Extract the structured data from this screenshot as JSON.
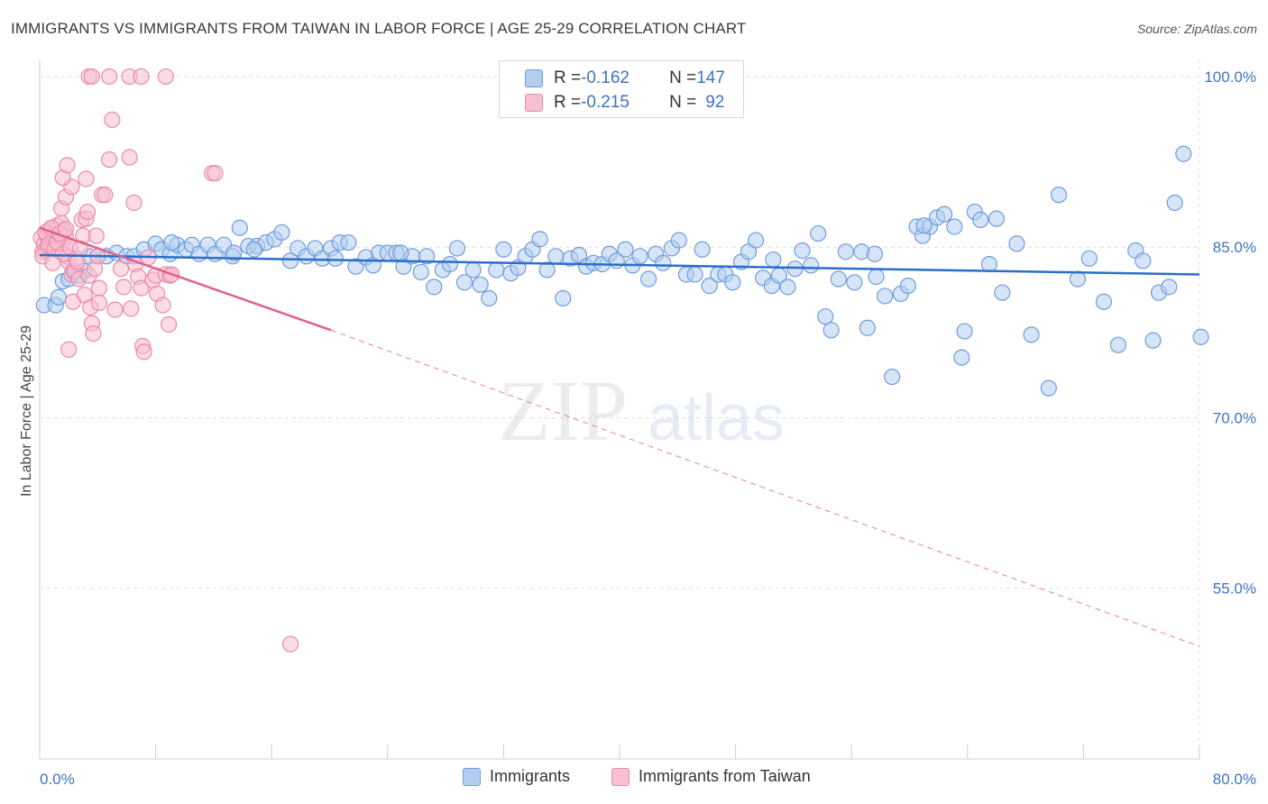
{
  "header": {
    "title": "IMMIGRANTS VS IMMIGRANTS FROM TAIWAN IN LABOR FORCE | AGE 25-29 CORRELATION CHART",
    "source": "Source: ZipAtlas.com"
  },
  "legend": {
    "series1": {
      "r_label": "R = ",
      "r_value": "-0.162",
      "n_label": "N = ",
      "n_value": "147"
    },
    "series2": {
      "r_label": "R = ",
      "r_value": "-0.215",
      "n_label": "N = ",
      "n_value": "92"
    }
  },
  "bottom_legend": {
    "series1": "Immigrants",
    "series2": "Immigrants from Taiwan"
  },
  "watermark": {
    "zip": "ZIP",
    "atlas": "atlas"
  },
  "colors": {
    "blue_fill": "#b3cdf1",
    "blue_stroke": "#6f9ddb",
    "blue_line": "#2a6fcb",
    "pink_fill": "#f7bfd2",
    "pink_stroke": "#e98aaa",
    "pink_line": "#e0608c",
    "tick_text": "#3c74c4",
    "grid": "#dedede"
  },
  "chart_data": {
    "type": "scatter",
    "title": "IMMIGRANTS VS IMMIGRANTS FROM TAIWAN IN LABOR FORCE | AGE 25-29 CORRELATION CHART",
    "ylabel": "In Labor Force | Age 25-29",
    "xlim": [
      0,
      80
    ],
    "ylim": [
      40,
      101.5
    ],
    "x_ticks": [
      "0.0%",
      "80.0%"
    ],
    "y_ticks": [
      {
        "value": 100,
        "label": "100.0%"
      },
      {
        "value": 85,
        "label": "85.0%"
      },
      {
        "value": 70,
        "label": "70.0%"
      },
      {
        "value": 55,
        "label": "55.0%"
      }
    ],
    "grid": true,
    "legend_position": "top-center",
    "series": [
      {
        "name": "Immigrants",
        "r": -0.162,
        "n": 147,
        "trend": {
          "x": [
            0,
            80
          ],
          "y": [
            84.3,
            82.6
          ],
          "style": "solid"
        },
        "points": [
          [
            0.3,
            79.9
          ],
          [
            1.1,
            79.9
          ],
          [
            1.3,
            80.6
          ],
          [
            1.6,
            82.0
          ],
          [
            2.0,
            82.2
          ],
          [
            2.3,
            82.9
          ],
          [
            2.7,
            82.5
          ],
          [
            3.1,
            82.9
          ],
          [
            3.4,
            84.2
          ],
          [
            4.0,
            84.2
          ],
          [
            4.6,
            84.2
          ],
          [
            5.3,
            84.5
          ],
          [
            6.0,
            84.2
          ],
          [
            6.5,
            84.2
          ],
          [
            7.2,
            84.8
          ],
          [
            8.0,
            85.3
          ],
          [
            8.4,
            84.8
          ],
          [
            9.0,
            84.4
          ],
          [
            9.5,
            85.2
          ],
          [
            10.1,
            84.8
          ],
          [
            10.5,
            85.2
          ],
          [
            11.0,
            84.4
          ],
          [
            11.6,
            85.2
          ],
          [
            12.1,
            84.4
          ],
          [
            12.7,
            85.2
          ],
          [
            13.3,
            84.2
          ],
          [
            13.8,
            86.7
          ],
          [
            14.4,
            85.1
          ],
          [
            15.0,
            85.1
          ],
          [
            15.6,
            85.4
          ],
          [
            16.2,
            85.7
          ],
          [
            16.7,
            86.3
          ],
          [
            17.3,
            83.8
          ],
          [
            17.8,
            84.9
          ],
          [
            18.4,
            84.2
          ],
          [
            19.0,
            84.9
          ],
          [
            19.5,
            84.0
          ],
          [
            20.1,
            84.9
          ],
          [
            20.7,
            85.4
          ],
          [
            21.3,
            85.4
          ],
          [
            21.8,
            83.3
          ],
          [
            22.5,
            84.1
          ],
          [
            23.0,
            83.4
          ],
          [
            23.4,
            84.5
          ],
          [
            24.0,
            84.5
          ],
          [
            24.6,
            84.5
          ],
          [
            25.1,
            83.3
          ],
          [
            25.7,
            84.2
          ],
          [
            26.3,
            82.8
          ],
          [
            26.7,
            84.2
          ],
          [
            27.2,
            81.5
          ],
          [
            27.8,
            83.0
          ],
          [
            28.3,
            83.5
          ],
          [
            28.8,
            84.9
          ],
          [
            29.3,
            81.9
          ],
          [
            29.9,
            83.0
          ],
          [
            30.4,
            81.7
          ],
          [
            31.0,
            80.5
          ],
          [
            31.5,
            83.0
          ],
          [
            32.0,
            84.8
          ],
          [
            32.5,
            82.7
          ],
          [
            33.0,
            83.2
          ],
          [
            33.5,
            84.2
          ],
          [
            34.0,
            84.8
          ],
          [
            34.5,
            85.7
          ],
          [
            35.0,
            83.0
          ],
          [
            35.6,
            84.2
          ],
          [
            36.1,
            80.5
          ],
          [
            36.6,
            84.0
          ],
          [
            37.2,
            84.3
          ],
          [
            37.7,
            83.3
          ],
          [
            38.2,
            83.6
          ],
          [
            38.8,
            83.5
          ],
          [
            39.3,
            84.4
          ],
          [
            39.8,
            83.8
          ],
          [
            40.4,
            84.8
          ],
          [
            40.9,
            83.4
          ],
          [
            41.4,
            84.2
          ],
          [
            42.0,
            82.2
          ],
          [
            42.5,
            84.4
          ],
          [
            43.0,
            83.6
          ],
          [
            43.6,
            84.9
          ],
          [
            44.1,
            85.6
          ],
          [
            44.6,
            82.6
          ],
          [
            45.2,
            82.6
          ],
          [
            45.7,
            84.8
          ],
          [
            46.2,
            81.6
          ],
          [
            46.8,
            82.6
          ],
          [
            47.3,
            82.6
          ],
          [
            47.8,
            81.9
          ],
          [
            48.4,
            83.7
          ],
          [
            48.9,
            84.6
          ],
          [
            49.4,
            85.6
          ],
          [
            49.9,
            82.3
          ],
          [
            50.5,
            81.6
          ],
          [
            51.0,
            82.5
          ],
          [
            51.6,
            81.5
          ],
          [
            52.1,
            83.1
          ],
          [
            52.6,
            84.7
          ],
          [
            53.2,
            83.4
          ],
          [
            53.7,
            86.2
          ],
          [
            54.2,
            78.9
          ],
          [
            54.6,
            77.7
          ],
          [
            55.1,
            82.2
          ],
          [
            55.6,
            84.6
          ],
          [
            56.2,
            81.9
          ],
          [
            56.7,
            84.6
          ],
          [
            57.1,
            77.9
          ],
          [
            57.7,
            82.4
          ],
          [
            58.3,
            80.7
          ],
          [
            58.8,
            73.6
          ],
          [
            59.4,
            80.9
          ],
          [
            59.9,
            81.6
          ],
          [
            60.5,
            86.8
          ],
          [
            60.9,
            86.0
          ],
          [
            61.4,
            86.8
          ],
          [
            61.9,
            87.6
          ],
          [
            62.4,
            87.9
          ],
          [
            63.1,
            86.8
          ],
          [
            63.6,
            75.3
          ],
          [
            63.8,
            77.6
          ],
          [
            64.5,
            88.1
          ],
          [
            64.9,
            87.4
          ],
          [
            65.5,
            83.5
          ],
          [
            66.0,
            87.5
          ],
          [
            66.4,
            81.0
          ],
          [
            67.4,
            85.3
          ],
          [
            68.4,
            77.3
          ],
          [
            69.6,
            72.6
          ],
          [
            70.3,
            89.6
          ],
          [
            71.6,
            82.2
          ],
          [
            72.4,
            84.0
          ],
          [
            73.4,
            80.2
          ],
          [
            74.4,
            76.4
          ],
          [
            75.6,
            84.7
          ],
          [
            76.1,
            83.8
          ],
          [
            76.8,
            76.8
          ],
          [
            77.2,
            81.0
          ],
          [
            77.9,
            81.5
          ],
          [
            78.3,
            88.9
          ],
          [
            78.9,
            93.2
          ],
          [
            80.1,
            77.1
          ],
          [
            20.4,
            84.0
          ],
          [
            24.9,
            84.5
          ],
          [
            13.4,
            84.5
          ],
          [
            9.1,
            85.4
          ],
          [
            14.8,
            84.8
          ],
          [
            50.6,
            83.9
          ],
          [
            57.6,
            84.4
          ],
          [
            61.0,
            86.9
          ]
        ]
      },
      {
        "name": "Immigrants from Taiwan",
        "r": -0.215,
        "n": 92,
        "trend": {
          "x": [
            0,
            20.1,
            80
          ],
          "y": [
            86.7,
            77.7,
            49.9
          ],
          "solid_until": 20.1,
          "style": "solid-then-dashed"
        },
        "points": [
          [
            0.1,
            85.8
          ],
          [
            0.2,
            84.6
          ],
          [
            0.3,
            85.3
          ],
          [
            0.4,
            84.7
          ],
          [
            0.5,
            86.0
          ],
          [
            0.6,
            85.0
          ],
          [
            0.7,
            86.5
          ],
          [
            0.8,
            84.9
          ],
          [
            0.9,
            85.7
          ],
          [
            1.0,
            86.0
          ],
          [
            1.1,
            85.1
          ],
          [
            1.2,
            86.9
          ],
          [
            1.3,
            85.6
          ],
          [
            1.4,
            84.6
          ],
          [
            1.5,
            87.1
          ],
          [
            1.6,
            85.3
          ],
          [
            1.7,
            86.4
          ],
          [
            1.8,
            85.9
          ],
          [
            1.9,
            84.2
          ],
          [
            2.0,
            83.7
          ],
          [
            0.2,
            84.2
          ],
          [
            0.4,
            86.3
          ],
          [
            0.6,
            85.2
          ],
          [
            0.8,
            86.7
          ],
          [
            1.0,
            84.8
          ],
          [
            1.2,
            85.4
          ],
          [
            1.4,
            86.2
          ],
          [
            1.6,
            84.4
          ],
          [
            1.8,
            86.6
          ],
          [
            2.1,
            85.0
          ],
          [
            2.2,
            82.6
          ],
          [
            2.3,
            80.2
          ],
          [
            2.4,
            82.9
          ],
          [
            2.5,
            84.0
          ],
          [
            2.6,
            83.7
          ],
          [
            2.7,
            82.2
          ],
          [
            2.8,
            84.9
          ],
          [
            2.9,
            87.4
          ],
          [
            3.0,
            86.0
          ],
          [
            3.1,
            80.8
          ],
          [
            3.2,
            87.5
          ],
          [
            3.3,
            88.1
          ],
          [
            3.4,
            82.5
          ],
          [
            3.5,
            79.7
          ],
          [
            3.6,
            78.3
          ],
          [
            3.7,
            77.4
          ],
          [
            3.8,
            83.1
          ],
          [
            3.9,
            86.0
          ],
          [
            4.0,
            84.2
          ],
          [
            4.1,
            81.4
          ],
          [
            2.0,
            76.0
          ],
          [
            1.5,
            88.4
          ],
          [
            1.8,
            89.4
          ],
          [
            2.2,
            90.3
          ],
          [
            1.6,
            91.1
          ],
          [
            1.9,
            92.2
          ],
          [
            3.2,
            91.0
          ],
          [
            4.3,
            89.6
          ],
          [
            4.5,
            89.6
          ],
          [
            5.0,
            96.2
          ],
          [
            4.8,
            92.7
          ],
          [
            6.2,
            92.9
          ],
          [
            6.5,
            88.9
          ],
          [
            6.6,
            83.5
          ],
          [
            6.8,
            82.4
          ],
          [
            7.0,
            81.4
          ],
          [
            7.1,
            76.3
          ],
          [
            7.2,
            75.8
          ],
          [
            7.5,
            84.1
          ],
          [
            7.8,
            82.1
          ],
          [
            8.0,
            82.5
          ],
          [
            8.1,
            80.9
          ],
          [
            8.5,
            79.9
          ],
          [
            8.7,
            82.6
          ],
          [
            8.9,
            78.2
          ],
          [
            9.0,
            82.5
          ],
          [
            9.1,
            82.6
          ],
          [
            11.9,
            91.5
          ],
          [
            12.1,
            91.5
          ],
          [
            5.2,
            79.5
          ],
          [
            3.4,
            100.0
          ],
          [
            3.6,
            100.0
          ],
          [
            4.8,
            100.0
          ],
          [
            6.2,
            100.0
          ],
          [
            7.0,
            100.0
          ],
          [
            8.7,
            100.0
          ],
          [
            6.3,
            79.6
          ],
          [
            5.6,
            83.1
          ],
          [
            5.8,
            81.5
          ],
          [
            4.1,
            80.1
          ],
          [
            0.9,
            83.6
          ],
          [
            17.3,
            50.1
          ]
        ]
      }
    ]
  }
}
